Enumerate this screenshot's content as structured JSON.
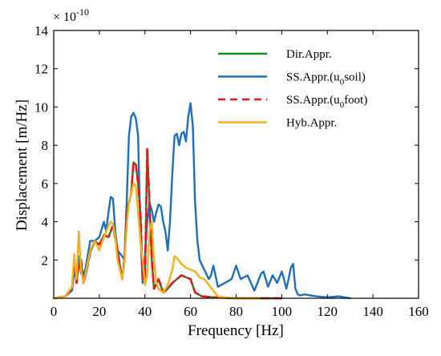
{
  "chart_data": {
    "type": "line",
    "xlabel": "Frequency [Hz]",
    "ylabel": "Displacement [m/Hz]",
    "y_scale_factor": "× 10",
    "y_scale_exponent": "-10",
    "xlim": [
      0,
      160
    ],
    "ylim": [
      0,
      14
    ],
    "xticks": [
      0,
      20,
      40,
      60,
      80,
      100,
      120,
      140,
      160
    ],
    "yticks": [
      2,
      4,
      6,
      8,
      10,
      12,
      14
    ],
    "grid": false,
    "legend_position": "top-right",
    "series": [
      {
        "name": "Dir.Appr.",
        "color": "#1a8a1a",
        "dash": "solid",
        "x": [
          0,
          5,
          8,
          9,
          10,
          11,
          12,
          13,
          14,
          16,
          18,
          20,
          22,
          24,
          26,
          28,
          30,
          31,
          32,
          33,
          34,
          35,
          36,
          37,
          38,
          39,
          40,
          41,
          42,
          43,
          44,
          46,
          48,
          50,
          52,
          54,
          56,
          58,
          60,
          62,
          65,
          70,
          80,
          90,
          100
        ],
        "y": [
          0,
          0.1,
          0.5,
          2.0,
          0.8,
          1.8,
          2.0,
          0.8,
          1.2,
          2.4,
          3.0,
          2.8,
          3.3,
          3.2,
          3.8,
          2.5,
          1.0,
          2.0,
          4.5,
          5.0,
          5.5,
          7.1,
          7.0,
          6.0,
          4.5,
          1.0,
          1.0,
          7.8,
          5.0,
          2.0,
          0.5,
          1.0,
          0.3,
          0.5,
          0.8,
          1.0,
          1.2,
          1.1,
          1.0,
          0.3,
          0.1,
          0.05,
          0,
          0,
          0
        ]
      },
      {
        "name": "SS.Appr.(u0soil)",
        "color": "#1f6fb8",
        "dash": "solid",
        "x": [
          0,
          5,
          8,
          9,
          10,
          11,
          12,
          13,
          14,
          16,
          18,
          20,
          22,
          23,
          24,
          25,
          26,
          27,
          28,
          30,
          31,
          32,
          33,
          34,
          35,
          36,
          37,
          38,
          39,
          40,
          41,
          42,
          43,
          44,
          45,
          46,
          47,
          48,
          49,
          50,
          51,
          52,
          53,
          54,
          55,
          56,
          57,
          58,
          59,
          60,
          61,
          62,
          63,
          64,
          66,
          68,
          69,
          70,
          72,
          75,
          78,
          80,
          82,
          85,
          88,
          90,
          91,
          92,
          94,
          96,
          98,
          100,
          101,
          102,
          103,
          104,
          105,
          106,
          107,
          108,
          110,
          115,
          120,
          125,
          130
        ],
        "y": [
          0,
          0.1,
          0.4,
          1.4,
          1.0,
          2.2,
          1.3,
          1.2,
          1.6,
          3.0,
          3.0,
          3.2,
          4.0,
          3.5,
          4.5,
          5.3,
          5.2,
          3.5,
          2.5,
          2.2,
          2.0,
          5.0,
          8.5,
          9.5,
          9.7,
          9.4,
          8.5,
          3.5,
          0.8,
          2.2,
          4.0,
          5.0,
          4.6,
          4.0,
          4.5,
          4.9,
          4.8,
          4.0,
          3.5,
          2.5,
          4.0,
          6.5,
          8.5,
          8.6,
          8.0,
          8.6,
          8.7,
          8.2,
          9.5,
          10.2,
          9.0,
          5.0,
          3.0,
          2.0,
          1.5,
          1.0,
          1.2,
          1.7,
          0.6,
          0.8,
          1.0,
          1.7,
          1.0,
          1.2,
          0.4,
          1.0,
          1.3,
          1.4,
          0.6,
          1.2,
          0.8,
          1.4,
          1.0,
          0.5,
          1.0,
          1.6,
          1.8,
          0.5,
          0.2,
          0.15,
          0.2,
          0.1,
          0.05,
          0.1,
          0
        ]
      },
      {
        "name": "SS.Appr.(u0foot)",
        "color": "#e8141e",
        "dash": "dashed",
        "x": [
          0,
          5,
          8,
          9,
          10,
          11,
          12,
          13,
          14,
          16,
          18,
          20,
          22,
          24,
          26,
          28,
          30,
          31,
          32,
          33,
          34,
          35,
          36,
          37,
          38,
          39,
          40,
          41,
          42,
          43,
          44,
          46,
          48,
          50,
          52,
          54,
          56,
          58,
          60,
          62,
          65,
          70,
          80,
          90,
          100
        ],
        "y": [
          0,
          0.1,
          0.5,
          2.0,
          0.8,
          1.8,
          2.0,
          0.8,
          1.2,
          2.4,
          3.0,
          2.8,
          3.3,
          3.2,
          3.8,
          2.5,
          1.0,
          2.0,
          4.5,
          5.0,
          5.5,
          7.1,
          7.0,
          6.0,
          4.5,
          1.0,
          1.0,
          7.8,
          5.0,
          2.0,
          0.5,
          1.0,
          0.3,
          0.5,
          0.8,
          1.0,
          1.2,
          1.1,
          1.0,
          0.3,
          0.1,
          0.05,
          0,
          0,
          0
        ]
      },
      {
        "name": "Hyb.Appr.",
        "color": "#f0b21e",
        "dash": "solid",
        "x": [
          0,
          5,
          8,
          9,
          10,
          11,
          12,
          13,
          14,
          16,
          18,
          20,
          22,
          24,
          25,
          26,
          27,
          28,
          30,
          31,
          32,
          33,
          34,
          35,
          36,
          37,
          38,
          39,
          40,
          41,
          42,
          43,
          44,
          45,
          46,
          48,
          50,
          52,
          53,
          54,
          56,
          58,
          60,
          62,
          64,
          66,
          68,
          70,
          72,
          75,
          80,
          90
        ],
        "y": [
          0,
          0.1,
          0.6,
          2.3,
          1.0,
          3.5,
          1.5,
          0.8,
          1.3,
          2.5,
          3.0,
          2.5,
          3.2,
          3.8,
          4.0,
          3.9,
          3.2,
          2.0,
          1.0,
          1.8,
          3.8,
          5.0,
          5.5,
          6.0,
          5.9,
          4.5,
          3.0,
          2.0,
          0.7,
          1.2,
          3.5,
          4.0,
          2.0,
          0.8,
          0.5,
          0.3,
          0.7,
          1.5,
          2.2,
          2.1,
          1.8,
          1.6,
          1.5,
          1.4,
          1.1,
          1.0,
          0.7,
          0.4,
          0.1,
          0.05,
          0,
          0
        ]
      }
    ],
    "legend": [
      {
        "text": "Dir.Appr.",
        "color": "#1a8a1a",
        "dash": "solid"
      },
      {
        "text": "SS.Appr.(u",
        "sub": "0",
        "tail": "soil)",
        "color": "#1f6fb8",
        "dash": "solid"
      },
      {
        "text": "SS.Appr.(u",
        "sub": "0",
        "tail": "foot)",
        "color": "#e8141e",
        "dash": "dashed"
      },
      {
        "text": "Hyb.Appr.",
        "color": "#f0b21e",
        "dash": "solid"
      }
    ]
  }
}
